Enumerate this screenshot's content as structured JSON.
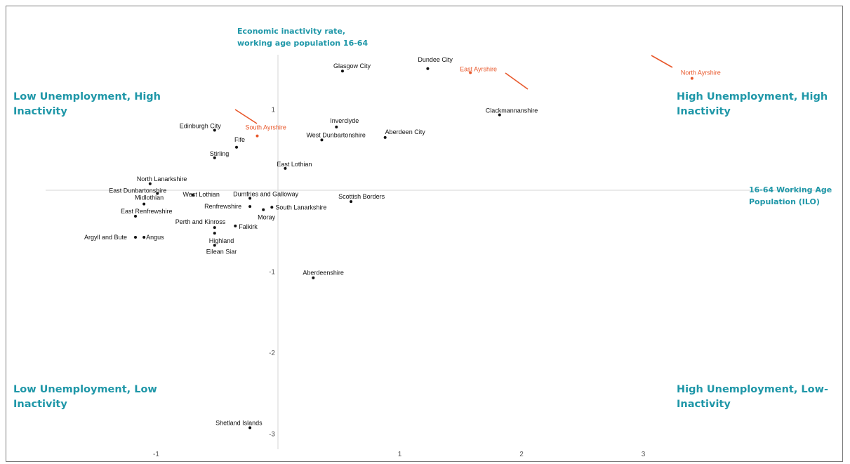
{
  "chart_data": {
    "type": "scatter",
    "ylabel": "Economic inactivity rate,\nworking age population 16-64",
    "xlabel": "16-64 Working Age\nPopulation (ILO)",
    "xlim": [
      -1.3,
      3.6
    ],
    "ylim": [
      -3.2,
      1.5
    ],
    "x_ticks": [
      -1,
      1,
      2,
      3
    ],
    "y_ticks": [
      1,
      -1,
      -2,
      -3
    ],
    "grid": false,
    "colors": {
      "normal": "#111111",
      "highlight": "#e8572a",
      "accent": "#1f97a8"
    },
    "quadrants": {
      "top_left": "Low Unemployment, High\nInactivity",
      "top_right": "High Unemployment, High\nInactivity",
      "bottom_left": "Low Unemployment, Low\nInactivity",
      "bottom_right": "High Unemployment, Low-\nInactivity"
    },
    "points": [
      {
        "label": "Glasgow City",
        "x": 0.53,
        "y": 1.47,
        "highlight": false
      },
      {
        "label": "Dundee City",
        "x": 1.23,
        "y": 1.5,
        "highlight": false
      },
      {
        "label": "East Ayrshire",
        "x": 1.58,
        "y": 1.45,
        "highlight": true
      },
      {
        "label": "North Ayrshire",
        "x": 3.4,
        "y": 1.38,
        "highlight": true
      },
      {
        "label": "Clackmannanshire",
        "x": 1.82,
        "y": 0.93,
        "highlight": false
      },
      {
        "label": "Inverclyde",
        "x": 0.48,
        "y": 0.78,
        "highlight": false
      },
      {
        "label": "West Dunbartonshire",
        "x": 0.36,
        "y": 0.62,
        "highlight": false
      },
      {
        "label": "Aberdeen City",
        "x": 0.88,
        "y": 0.65,
        "highlight": false
      },
      {
        "label": "Edinburgh City",
        "x": -0.52,
        "y": 0.74,
        "highlight": false
      },
      {
        "label": "South Ayrshire",
        "x": -0.17,
        "y": 0.67,
        "highlight": true
      },
      {
        "label": "Fife",
        "x": -0.34,
        "y": 0.53,
        "highlight": false
      },
      {
        "label": "Stirling",
        "x": -0.52,
        "y": 0.4,
        "highlight": false
      },
      {
        "label": "East Lothian",
        "x": 0.06,
        "y": 0.27,
        "highlight": false
      },
      {
        "label": "North Lanarkshire",
        "x": -1.05,
        "y": 0.08,
        "highlight": false
      },
      {
        "label": "East Dunbartonshire",
        "x": -0.99,
        "y": -0.04,
        "highlight": false
      },
      {
        "label": "West Lothian",
        "x": -0.7,
        "y": -0.06,
        "highlight": false
      },
      {
        "label": "Midlothian",
        "x": -1.1,
        "y": -0.17,
        "highlight": false
      },
      {
        "label": "Dumfries and Galloway",
        "x": -0.23,
        "y": -0.1,
        "highlight": false
      },
      {
        "label": "Scottish Borders",
        "x": 0.6,
        "y": -0.14,
        "highlight": false
      },
      {
        "label": "Renfrewshire",
        "x": -0.23,
        "y": -0.2,
        "highlight": false
      },
      {
        "label": "South Lanarkshire",
        "x": -0.05,
        "y": -0.21,
        "highlight": false
      },
      {
        "label": "Moray",
        "x": -0.12,
        "y": -0.24,
        "highlight": false
      },
      {
        "label": "East Renfrewshire",
        "x": -1.17,
        "y": -0.32,
        "highlight": false
      },
      {
        "label": "Perth and Kinross",
        "x": -0.52,
        "y": -0.46,
        "highlight": false
      },
      {
        "label": "Falkirk",
        "x": -0.35,
        "y": -0.44,
        "highlight": false
      },
      {
        "label": "Argyll and Bute",
        "x": -1.17,
        "y": -0.58,
        "highlight": false
      },
      {
        "label": "Angus",
        "x": -1.1,
        "y": -0.58,
        "highlight": false
      },
      {
        "label": "Highland",
        "x": -0.52,
        "y": -0.53,
        "highlight": false
      },
      {
        "label": "Eilean Siar",
        "x": -0.52,
        "y": -0.68,
        "highlight": false
      },
      {
        "label": "Aberdeenshire",
        "x": 0.29,
        "y": -1.08,
        "highlight": false
      },
      {
        "label": "Shetland Islands",
        "x": -0.23,
        "y": -2.93,
        "highlight": false
      }
    ]
  }
}
